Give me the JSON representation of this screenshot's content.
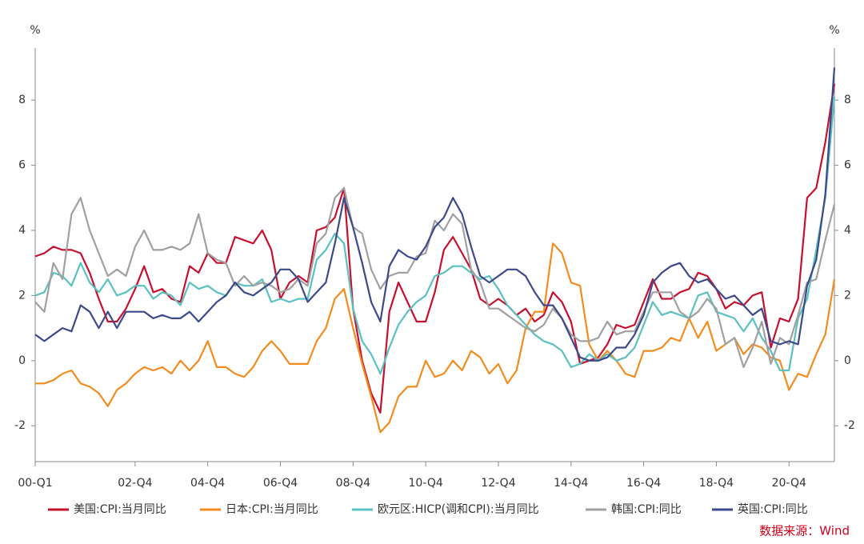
{
  "chart_data": {
    "type": "line",
    "y_label": "%",
    "y2_label": "%",
    "source": "数据来源：Wind",
    "categories": [
      "00-Q1",
      null,
      null,
      null,
      null,
      null,
      null,
      null,
      null,
      null,
      null,
      "02-Q4",
      null,
      null,
      null,
      null,
      null,
      null,
      null,
      "04-Q4",
      null,
      null,
      null,
      null,
      null,
      null,
      null,
      "06-Q4",
      null,
      null,
      null,
      null,
      null,
      null,
      null,
      "08-Q4",
      null,
      null,
      null,
      null,
      null,
      null,
      null,
      "10-Q4",
      null,
      null,
      null,
      null,
      null,
      null,
      null,
      "12-Q4",
      null,
      null,
      null,
      null,
      null,
      null,
      null,
      "14-Q4",
      null,
      null,
      null,
      null,
      null,
      null,
      null,
      "16-Q4",
      null,
      null,
      null,
      null,
      null,
      null,
      null,
      "18-Q4",
      null,
      null,
      null,
      null,
      null,
      null,
      null,
      "20-Q4",
      null,
      null,
      null,
      null,
      null
    ],
    "ylim": [
      -3.1,
      9.6
    ],
    "yticks": [
      -2,
      0,
      2,
      4,
      6,
      8
    ],
    "y2lim": [
      -3.1,
      9.6
    ],
    "y2ticks": [
      -2,
      0,
      2,
      4,
      6,
      8
    ],
    "series": [
      {
        "name": "美国:CPI:当月同比",
        "color": "#c8102e",
        "values": [
          3.2,
          3.3,
          3.5,
          3.4,
          3.4,
          3.3,
          2.7,
          1.9,
          1.2,
          1.2,
          1.6,
          2.2,
          2.9,
          2.1,
          2.2,
          1.9,
          1.8,
          2.9,
          2.7,
          3.3,
          3.0,
          3.0,
          3.8,
          3.7,
          3.6,
          4.0,
          3.4,
          1.9,
          2.4,
          2.6,
          2.4,
          4.0,
          4.1,
          4.4,
          5.3,
          1.6,
          0.0,
          -1.0,
          -1.6,
          1.5,
          2.4,
          1.8,
          1.2,
          1.2,
          2.1,
          3.4,
          3.8,
          3.3,
          2.8,
          1.9,
          1.7,
          1.9,
          1.7,
          1.4,
          1.6,
          1.2,
          1.4,
          2.1,
          1.8,
          1.2,
          -0.1,
          0.0,
          0.1,
          0.5,
          1.1,
          1.0,
          1.1,
          1.8,
          2.5,
          1.9,
          1.9,
          2.1,
          2.2,
          2.7,
          2.6,
          2.2,
          1.6,
          1.8,
          1.7,
          2.0,
          2.1,
          0.4,
          1.3,
          1.2,
          1.9,
          5.0,
          5.3,
          6.7,
          8.5
        ]
      },
      {
        "name": "日本:CPI:当月同比",
        "color": "#f28c1f",
        "values": [
          -0.7,
          -0.7,
          -0.6,
          -0.4,
          -0.3,
          -0.7,
          -0.8,
          -1.0,
          -1.4,
          -0.9,
          -0.7,
          -0.4,
          -0.2,
          -0.3,
          -0.2,
          -0.4,
          0.0,
          -0.3,
          0.0,
          0.6,
          -0.2,
          -0.2,
          -0.4,
          -0.5,
          -0.2,
          0.3,
          0.6,
          0.3,
          -0.1,
          -0.1,
          -0.1,
          0.6,
          1.0,
          1.9,
          2.2,
          1.0,
          -0.1,
          -1.1,
          -2.2,
          -1.9,
          -1.1,
          -0.8,
          -0.8,
          0.0,
          -0.5,
          -0.4,
          0.0,
          -0.3,
          0.3,
          0.1,
          -0.4,
          -0.1,
          -0.7,
          -0.3,
          1.0,
          1.5,
          1.5,
          3.6,
          3.3,
          2.4,
          2.3,
          0.5,
          0.0,
          0.3,
          0.0,
          -0.4,
          -0.5,
          0.3,
          0.3,
          0.4,
          0.7,
          0.6,
          1.3,
          0.7,
          1.2,
          0.3,
          0.5,
          0.7,
          0.2,
          0.5,
          0.4,
          0.1,
          0.0,
          -0.9,
          -0.4,
          -0.5,
          0.2,
          0.8,
          2.5
        ]
      },
      {
        "name": "欧元区:HICP(调和CPI):当月同比",
        "color": "#5bc0c0",
        "values": [
          2.0,
          2.1,
          2.7,
          2.6,
          2.3,
          3.0,
          2.4,
          2.1,
          2.5,
          2.0,
          2.1,
          2.3,
          2.3,
          1.9,
          2.1,
          2.0,
          1.7,
          2.4,
          2.2,
          2.3,
          2.1,
          2.0,
          2.4,
          2.3,
          2.3,
          2.5,
          1.8,
          1.9,
          1.8,
          1.9,
          1.9,
          3.1,
          3.4,
          3.9,
          3.6,
          1.6,
          0.6,
          0.2,
          -0.4,
          0.4,
          1.1,
          1.5,
          1.8,
          2.0,
          2.6,
          2.7,
          2.9,
          2.9,
          2.7,
          2.5,
          2.6,
          2.2,
          1.7,
          1.4,
          1.1,
          0.8,
          0.6,
          0.5,
          0.3,
          -0.2,
          -0.1,
          0.2,
          0.0,
          0.2,
          0.0,
          0.1,
          0.4,
          1.1,
          1.8,
          1.4,
          1.5,
          1.4,
          1.3,
          2.0,
          2.1,
          1.5,
          1.4,
          1.3,
          0.9,
          1.3,
          0.7,
          0.3,
          -0.3,
          -0.3,
          1.3,
          1.9,
          3.4,
          5.0,
          8.1
        ]
      },
      {
        "name": "韩国:CPI:同比",
        "color": "#a0a0a0",
        "values": [
          1.8,
          1.5,
          3.0,
          2.5,
          4.5,
          5.0,
          4.0,
          3.3,
          2.6,
          2.8,
          2.6,
          3.5,
          4.0,
          3.4,
          3.4,
          3.5,
          3.4,
          3.6,
          4.5,
          3.3,
          3.1,
          3.0,
          2.3,
          2.6,
          2.3,
          2.4,
          2.3,
          2.1,
          2.2,
          2.5,
          2.3,
          3.6,
          3.9,
          5.0,
          5.3,
          4.1,
          3.9,
          2.8,
          2.2,
          2.6,
          2.7,
          2.7,
          3.2,
          3.3,
          4.3,
          4.0,
          4.5,
          4.2,
          2.8,
          2.4,
          1.6,
          1.6,
          1.4,
          1.2,
          1.0,
          0.9,
          1.1,
          1.6,
          1.3,
          0.8,
          0.6,
          0.6,
          0.7,
          1.2,
          0.8,
          0.9,
          0.9,
          1.5,
          2.1,
          2.1,
          2.1,
          1.5,
          1.3,
          1.5,
          1.9,
          1.6,
          0.5,
          0.7,
          -0.2,
          0.4,
          1.2,
          -0.1,
          0.7,
          0.5,
          1.4,
          2.4,
          2.5,
          3.7,
          4.8
        ]
      },
      {
        "name": "英国:CPI:同比",
        "color": "#3c4a8c",
        "values": [
          0.8,
          0.6,
          0.8,
          1.0,
          0.9,
          1.7,
          1.5,
          1.0,
          1.5,
          1.0,
          1.5,
          1.5,
          1.5,
          1.3,
          1.4,
          1.3,
          1.3,
          1.5,
          1.2,
          1.5,
          1.8,
          2.0,
          2.4,
          2.1,
          2.0,
          2.2,
          2.4,
          2.8,
          2.8,
          2.5,
          1.8,
          2.1,
          2.4,
          3.6,
          5.0,
          4.1,
          3.0,
          1.8,
          1.2,
          2.9,
          3.4,
          3.2,
          3.1,
          3.5,
          4.1,
          4.4,
          5.0,
          4.5,
          3.5,
          2.6,
          2.4,
          2.6,
          2.8,
          2.8,
          2.6,
          2.1,
          1.7,
          1.7,
          1.3,
          0.7,
          0.1,
          0.0,
          0.0,
          0.1,
          0.4,
          0.4,
          0.8,
          1.4,
          2.4,
          2.7,
          2.9,
          3.0,
          2.6,
          2.4,
          2.5,
          2.2,
          1.9,
          2.0,
          1.7,
          1.4,
          1.6,
          0.6,
          0.5,
          0.6,
          0.5,
          2.3,
          3.1,
          5.1,
          9.0
        ]
      }
    ]
  }
}
